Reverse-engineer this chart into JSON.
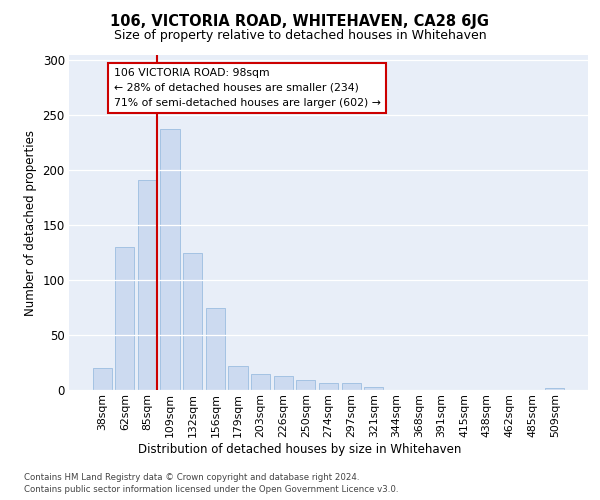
{
  "title": "106, VICTORIA ROAD, WHITEHAVEN, CA28 6JG",
  "subtitle": "Size of property relative to detached houses in Whitehaven",
  "xlabel": "Distribution of detached houses by size in Whitehaven",
  "ylabel": "Number of detached properties",
  "categories": [
    "38sqm",
    "62sqm",
    "85sqm",
    "109sqm",
    "132sqm",
    "156sqm",
    "179sqm",
    "203sqm",
    "226sqm",
    "250sqm",
    "274sqm",
    "297sqm",
    "321sqm",
    "344sqm",
    "368sqm",
    "391sqm",
    "415sqm",
    "438sqm",
    "462sqm",
    "485sqm",
    "509sqm"
  ],
  "values": [
    20,
    130,
    191,
    238,
    125,
    75,
    22,
    15,
    13,
    9,
    6,
    6,
    3,
    0,
    0,
    0,
    0,
    0,
    0,
    0,
    2
  ],
  "bar_color": "#ccdaf0",
  "bar_edge_color": "#9bbde0",
  "vline_color": "#cc0000",
  "vline_x": 2.43,
  "annotation_text": "106 VICTORIA ROAD: 98sqm\n← 28% of detached houses are smaller (234)\n71% of semi-detached houses are larger (602) →",
  "annotation_box_color": "#ffffff",
  "annotation_box_edge": "#cc0000",
  "ylim": [
    0,
    305
  ],
  "yticks": [
    0,
    50,
    100,
    150,
    200,
    250,
    300
  ],
  "footer_line1": "Contains HM Land Registry data © Crown copyright and database right 2024.",
  "footer_line2": "Contains public sector information licensed under the Open Government Licence v3.0.",
  "plot_bg_color": "#e8eef8"
}
